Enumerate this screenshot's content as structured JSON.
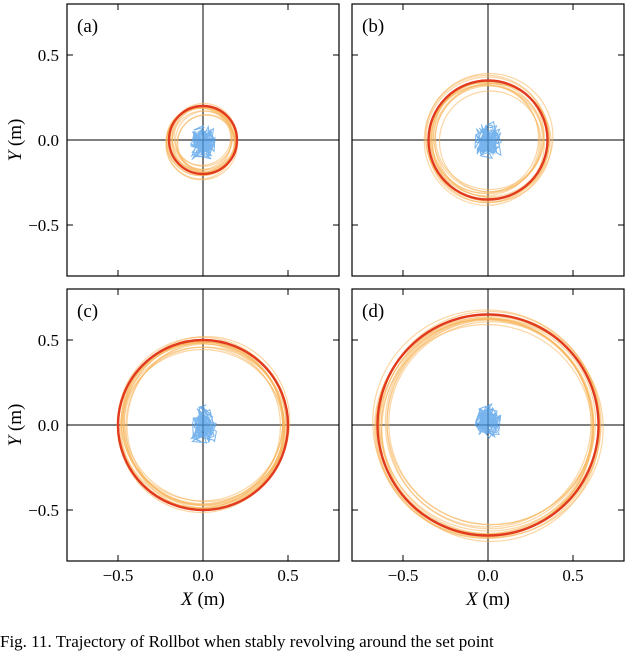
{
  "caption": "Fig. 11.   Trajectory of Rollbot when stably revolving around the set point",
  "colors": {
    "set_circle": "#e23a1e",
    "trajectory": "#f7b459",
    "center": "#4a9be8"
  },
  "axes_text": {
    "xlabel_var": "X",
    "xlabel_unit": " (m)",
    "ylabel_var": "Y",
    "ylabel_unit": " (m)",
    "x_ticks": [
      "−0.5",
      "0.0",
      "0.5"
    ],
    "y_ticks": [
      "0.5",
      "0.0",
      "−0.5"
    ]
  },
  "chart_data": [
    {
      "type": "scatter",
      "panel": "(a)",
      "xlim": [
        -0.8,
        0.8
      ],
      "ylim": [
        -0.8,
        0.8
      ],
      "xlabel": "X (m)",
      "ylabel": "Y (m)",
      "x_ticks": [
        -0.5,
        0.0,
        0.5
      ],
      "y_ticks": [
        -0.5,
        0.0,
        0.5
      ],
      "set_radius": 0.2,
      "trajectory_radius_range": [
        0.17,
        0.21
      ],
      "center_cluster": [
        0.0,
        -0.02
      ],
      "grid": false
    },
    {
      "type": "scatter",
      "panel": "(b)",
      "xlim": [
        -0.8,
        0.8
      ],
      "ylim": [
        -0.8,
        0.8
      ],
      "xlabel": "X (m)",
      "ylabel": "Y (m)",
      "x_ticks": [
        -0.5,
        0.0,
        0.5
      ],
      "y_ticks": [
        -0.5,
        0.0,
        0.5
      ],
      "set_radius": 0.35,
      "trajectory_radius_range": [
        0.3,
        0.38
      ],
      "center_cluster": [
        0.0,
        0.0
      ],
      "grid": false
    },
    {
      "type": "scatter",
      "panel": "(c)",
      "xlim": [
        -0.8,
        0.8
      ],
      "ylim": [
        -0.8,
        0.8
      ],
      "xlabel": "X (m)",
      "ylabel": "Y (m)",
      "x_ticks": [
        -0.5,
        0.0,
        0.5
      ],
      "y_ticks": [
        -0.5,
        0.0,
        0.5
      ],
      "set_radius": 0.5,
      "trajectory_radius_range": [
        0.47,
        0.5
      ],
      "center_cluster": [
        0.0,
        0.0
      ],
      "grid": false
    },
    {
      "type": "scatter",
      "panel": "(d)",
      "xlim": [
        -0.8,
        0.8
      ],
      "ylim": [
        -0.8,
        0.8
      ],
      "xlabel": "X (m)",
      "ylabel": "Y (m)",
      "x_ticks": [
        -0.5,
        0.0,
        0.5
      ],
      "y_ticks": [
        -0.5,
        0.0,
        0.5
      ],
      "set_radius": 0.65,
      "trajectory_radius_range": [
        0.6,
        0.66
      ],
      "center_cluster": [
        0.0,
        0.02
      ],
      "grid": false
    }
  ]
}
